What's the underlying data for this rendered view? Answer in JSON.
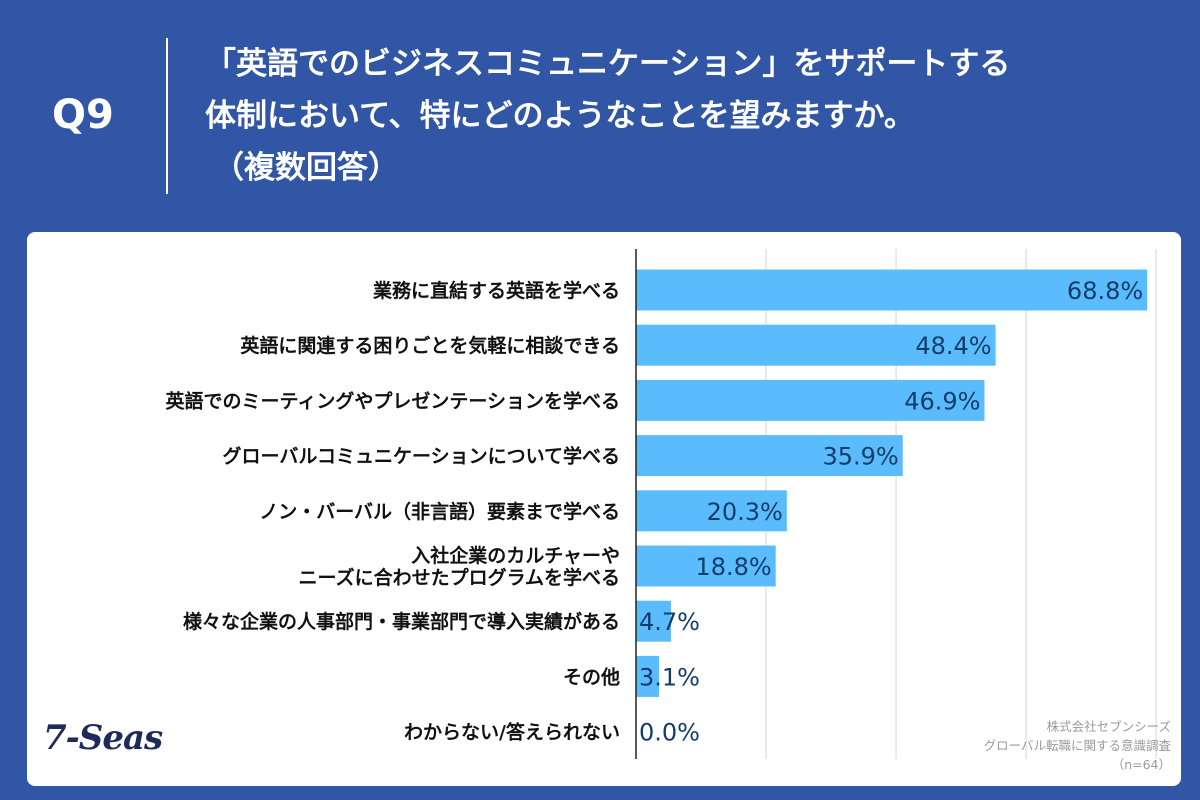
{
  "header": {
    "question_label": "Q9",
    "title_lines": [
      "「英語でのビジネスコミュニケーション」をサポートする",
      "体制において、特にどのようなことを望みますか。",
      "（複数回答）"
    ]
  },
  "footnote": {
    "company": "株式会社セブンシーズ",
    "survey": "グローバル転職に関する意識調査",
    "sample": "（n=64）"
  },
  "logo_text": "7-Seas",
  "colors": {
    "background": "#3156a6",
    "bar": "#5bbcfd",
    "value_text": "#123d6b",
    "label_text": "#111111",
    "grid": "#d4d4d4"
  },
  "chart_data": {
    "type": "bar",
    "orientation": "horizontal",
    "categories": [
      [
        "業務に直結する英語を学べる"
      ],
      [
        "英語に関連する困りごとを気軽に相談できる"
      ],
      [
        "英語でのミーティングやプレゼンテーションを学べる"
      ],
      [
        "グローバルコミュニケーションについて学べる"
      ],
      [
        "ノン・バーバル（非言語）要素まで学べる"
      ],
      [
        "入社企業のカルチャーや",
        "ニーズに合わせたプログラムを学べる"
      ],
      [
        "様々な企業の人事部門・事業部門で導入実績がある"
      ],
      [
        "その他"
      ],
      [
        "わからない/答えられない"
      ]
    ],
    "values": [
      68.8,
      48.4,
      46.9,
      35.9,
      20.3,
      18.8,
      4.7,
      3.1,
      0.0
    ],
    "value_labels": [
      "68.8%",
      "48.4%",
      "46.9%",
      "35.9%",
      "20.3%",
      "18.8%",
      "4.7%",
      "3.1%",
      "0.0%"
    ],
    "xlim": [
      0,
      70
    ],
    "grid": true,
    "gridline_values": [
      17.5,
      35,
      52.5,
      70
    ],
    "unit": "%"
  }
}
